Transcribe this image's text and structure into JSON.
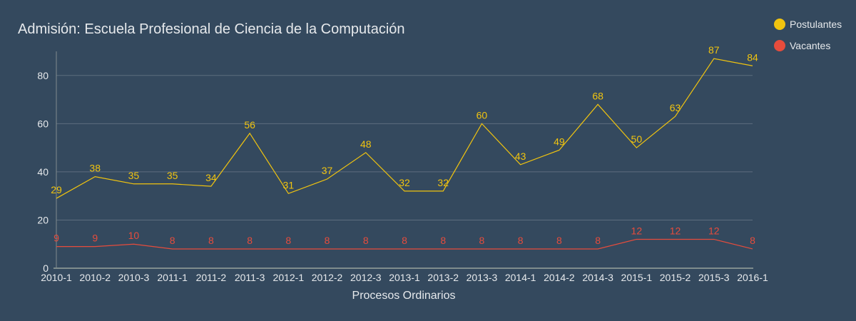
{
  "chart_data": {
    "type": "line",
    "title": "Admisión: Escuela Profesional de Ciencia de la Computación",
    "xlabel": "Procesos Ordinarios",
    "ylabel": "",
    "ylim": [
      0,
      90
    ],
    "yticks": [
      0,
      20,
      40,
      60,
      80
    ],
    "grid": true,
    "legend_position": "top-right",
    "categories": [
      "2010-1",
      "2010-2",
      "2010-3",
      "2011-1",
      "2011-2",
      "2011-3",
      "2012-1",
      "2012-2",
      "2012-3",
      "2013-1",
      "2013-2",
      "2013-3",
      "2014-1",
      "2014-2",
      "2014-3",
      "2015-1",
      "2015-2",
      "2015-3",
      "2016-1"
    ],
    "series": [
      {
        "name": "Postulantes",
        "color": "#f1c40f",
        "values": [
          29,
          38,
          35,
          35,
          34,
          56,
          31,
          37,
          48,
          32,
          32,
          60,
          43,
          49,
          68,
          50,
          63,
          87,
          84
        ]
      },
      {
        "name": "Vacantes",
        "color": "#e74c3c",
        "values": [
          9,
          9,
          10,
          8,
          8,
          8,
          8,
          8,
          8,
          8,
          8,
          8,
          8,
          8,
          8,
          12,
          12,
          12,
          8
        ]
      }
    ]
  },
  "colors": {
    "background": "#34495e",
    "grid": "#5d6d7e",
    "axis": "#7f8c8d",
    "text": "#e6e9ec"
  }
}
